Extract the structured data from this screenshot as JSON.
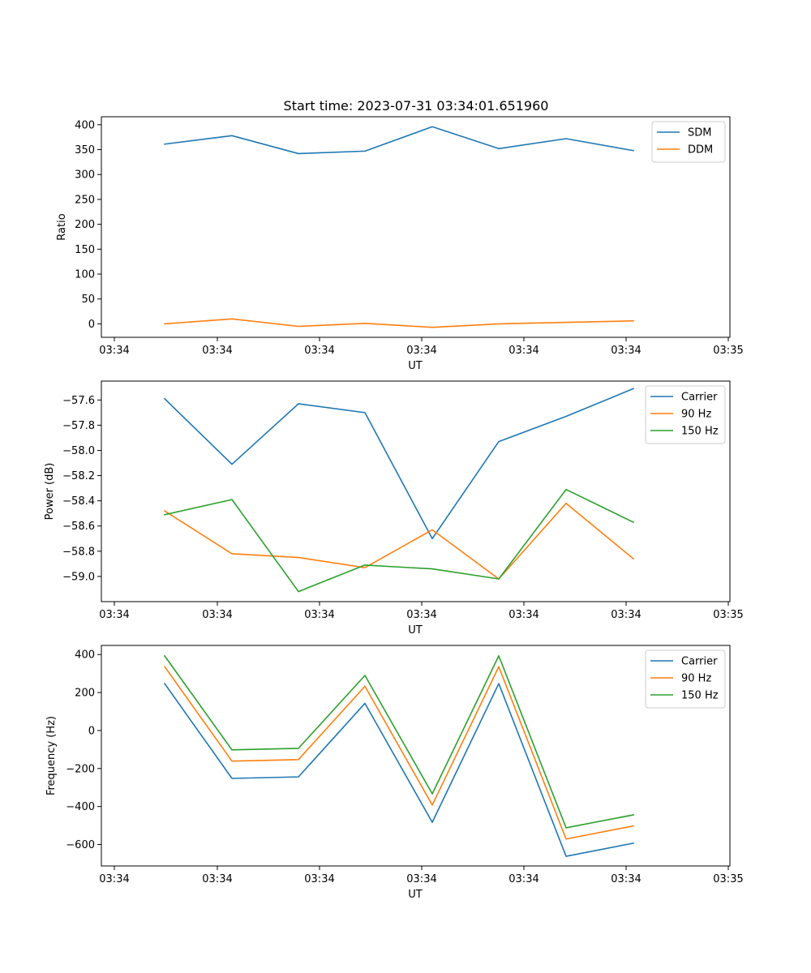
{
  "title": "Start time: 2023-07-31 03:34:01.651960",
  "chart_data": [
    {
      "type": "line",
      "xlabel": "UT",
      "ylabel": "Ratio",
      "xticks": [
        "03:34",
        "03:34",
        "03:34",
        "03:34",
        "03:34",
        "03:34",
        "03:35"
      ],
      "yticks": [
        0,
        50,
        100,
        150,
        200,
        250,
        300,
        350,
        400
      ],
      "ylim": [
        -27,
        416
      ],
      "legend": "top-right",
      "series": [
        {
          "name": "SDM",
          "color": "#1f77b4",
          "values": [
            361,
            378,
            342,
            347,
            396,
            352,
            372,
            348
          ]
        },
        {
          "name": "DDM",
          "color": "#ff7f0e",
          "values": [
            0,
            10,
            -5,
            1,
            -7,
            0,
            3,
            6
          ]
        }
      ]
    },
    {
      "type": "line",
      "xlabel": "UT",
      "ylabel": "Power (dB)",
      "xticks": [
        "03:34",
        "03:34",
        "03:34",
        "03:34",
        "03:34",
        "03:34",
        "03:35"
      ],
      "yticks": [
        -59.0,
        -58.8,
        -58.6,
        -58.4,
        -58.2,
        -58.0,
        -57.8,
        -57.6
      ],
      "yticklabels": [
        "−59.0",
        "−58.8",
        "−58.6",
        "−58.4",
        "−58.2",
        "−58.0",
        "−57.8",
        "−57.6"
      ],
      "ylim": [
        -59.2,
        -57.45
      ],
      "legend": "top-right",
      "series": [
        {
          "name": "Carrier",
          "color": "#1f77b4",
          "values": [
            -57.59,
            -58.11,
            -57.63,
            -57.7,
            -58.7,
            -57.93,
            -57.73,
            -57.51
          ]
        },
        {
          "name": "90 Hz",
          "color": "#ff7f0e",
          "values": [
            -58.48,
            -58.82,
            -58.85,
            -58.93,
            -58.63,
            -59.02,
            -58.42,
            -58.86
          ]
        },
        {
          "name": "150 Hz",
          "color": "#2ca02c",
          "values": [
            -58.51,
            -58.39,
            -59.12,
            -58.91,
            -58.94,
            -59.02,
            -58.31,
            -58.57
          ]
        }
      ]
    },
    {
      "type": "line",
      "xlabel": "UT",
      "ylabel": "Frequency (Hz)",
      "xticks": [
        "03:34",
        "03:34",
        "03:34",
        "03:34",
        "03:34",
        "03:34",
        "03:35"
      ],
      "yticks": [
        -600,
        -400,
        -200,
        0,
        200,
        400
      ],
      "yticklabels": [
        "−600",
        "−400",
        "−200",
        "0",
        "200",
        "400"
      ],
      "ylim": [
        -713,
        448
      ],
      "legend": "top-right",
      "series": [
        {
          "name": "Carrier",
          "color": "#1f77b4",
          "values": [
            247,
            -252,
            -244,
            143,
            -483,
            247,
            -662,
            -593
          ]
        },
        {
          "name": "90 Hz",
          "color": "#ff7f0e",
          "values": [
            336,
            -161,
            -153,
            233,
            -392,
            336,
            -571,
            -502
          ]
        },
        {
          "name": "150 Hz",
          "color": "#2ca02c",
          "values": [
            393,
            -102,
            -94,
            290,
            -333,
            393,
            -512,
            -444
          ]
        }
      ]
    }
  ]
}
